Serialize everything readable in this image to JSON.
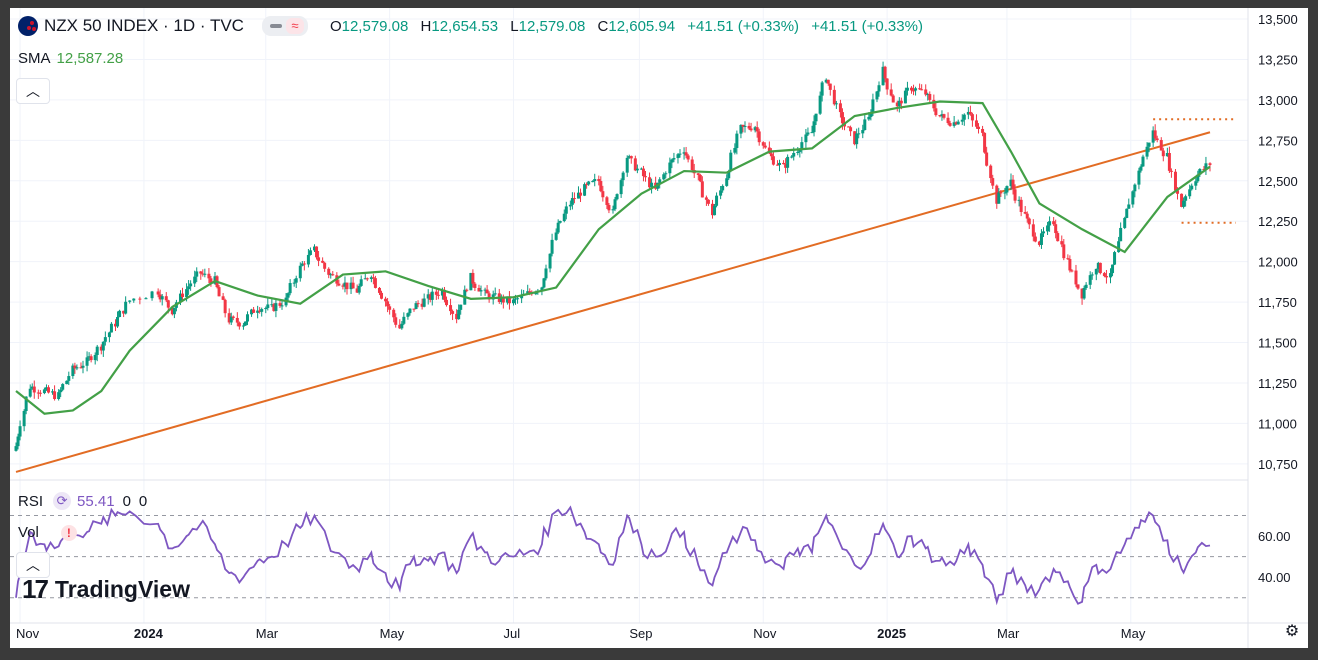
{
  "header": {
    "symbol": "NZX 50 INDEX · 1D · TVC",
    "o_label": "O",
    "o_value": "12,579.08",
    "h_label": "H",
    "h_value": "12,654.53",
    "l_label": "L",
    "l_value": "12,579.08",
    "c_label": "C",
    "c_value": "12,605.94",
    "change": "+41.51 (+0.33%)",
    "change2": "+41.51 (+0.33%)",
    "pill_icon": "≈"
  },
  "sma": {
    "label": "SMA",
    "value": "12,587.28"
  },
  "rsi": {
    "label": "RSI",
    "value": "55.41",
    "extra1": "0",
    "extra2": "0"
  },
  "vol": {
    "label": "Vol"
  },
  "logo": {
    "text": "TradingView"
  },
  "colors": {
    "up": "#089981",
    "down": "#f23645",
    "sma": "#43a047",
    "trendline": "#e26c24",
    "rsi": "#7e57c2",
    "grid": "#f0f3fa"
  },
  "chart_data": [
    {
      "type": "candlestick",
      "title": "NZX 50 INDEX · 1D · TVC",
      "x_ticks": [
        "Nov",
        "2024",
        "Mar",
        "May",
        "Jul",
        "Sep",
        "Nov",
        "2025",
        "Mar",
        "May"
      ],
      "y_ticks": [
        "13,500",
        "13,250",
        "13,000",
        "12,750",
        "12,500",
        "12,250",
        "12,000",
        "11,750",
        "11,500",
        "11,250",
        "11,000",
        "10,750"
      ],
      "ylim": [
        10650,
        13500
      ],
      "close_series": [
        {
          "date": "2023-10-30",
          "close": 10860
        },
        {
          "date": "2023-11-06",
          "close": 11230
        },
        {
          "date": "2023-11-13",
          "close": 11200
        },
        {
          "date": "2023-11-20",
          "close": 11170
        },
        {
          "date": "2023-11-27",
          "close": 11330
        },
        {
          "date": "2023-12-04",
          "close": 11380
        },
        {
          "date": "2023-12-11",
          "close": 11480
        },
        {
          "date": "2023-12-18",
          "close": 11620
        },
        {
          "date": "2023-12-25",
          "close": 11760
        },
        {
          "date": "2024-01-08",
          "close": 11820
        },
        {
          "date": "2024-01-15",
          "close": 11700
        },
        {
          "date": "2024-01-22",
          "close": 11830
        },
        {
          "date": "2024-01-29",
          "close": 11930
        },
        {
          "date": "2024-02-05",
          "close": 11880
        },
        {
          "date": "2024-02-12",
          "close": 11640
        },
        {
          "date": "2024-02-19",
          "close": 11620
        },
        {
          "date": "2024-02-26",
          "close": 11720
        },
        {
          "date": "2024-03-04",
          "close": 11710
        },
        {
          "date": "2024-03-11",
          "close": 11760
        },
        {
          "date": "2024-03-18",
          "close": 11960
        },
        {
          "date": "2024-03-25",
          "close": 12070
        },
        {
          "date": "2024-04-01",
          "close": 11930
        },
        {
          "date": "2024-04-08",
          "close": 11870
        },
        {
          "date": "2024-04-15",
          "close": 11820
        },
        {
          "date": "2024-04-22",
          "close": 11930
        },
        {
          "date": "2024-04-29",
          "close": 11760
        },
        {
          "date": "2024-05-06",
          "close": 11590
        },
        {
          "date": "2024-05-13",
          "close": 11720
        },
        {
          "date": "2024-05-20",
          "close": 11770
        },
        {
          "date": "2024-05-27",
          "close": 11820
        },
        {
          "date": "2024-06-03",
          "close": 11660
        },
        {
          "date": "2024-06-10",
          "close": 11900
        },
        {
          "date": "2024-06-17",
          "close": 11800
        },
        {
          "date": "2024-06-24",
          "close": 11770
        },
        {
          "date": "2024-07-01",
          "close": 11750
        },
        {
          "date": "2024-07-08",
          "close": 11800
        },
        {
          "date": "2024-07-15",
          "close": 11850
        },
        {
          "date": "2024-07-22",
          "close": 12180
        },
        {
          "date": "2024-07-29",
          "close": 12360
        },
        {
          "date": "2024-08-05",
          "close": 12450
        },
        {
          "date": "2024-08-12",
          "close": 12500
        },
        {
          "date": "2024-08-19",
          "close": 12300
        },
        {
          "date": "2024-08-26",
          "close": 12650
        },
        {
          "date": "2024-09-02",
          "close": 12550
        },
        {
          "date": "2024-09-09",
          "close": 12440
        },
        {
          "date": "2024-09-16",
          "close": 12600
        },
        {
          "date": "2024-09-23",
          "close": 12700
        },
        {
          "date": "2024-09-30",
          "close": 12510
        },
        {
          "date": "2024-10-07",
          "close": 12300
        },
        {
          "date": "2024-10-14",
          "close": 12530
        },
        {
          "date": "2024-10-21",
          "close": 12820
        },
        {
          "date": "2024-10-28",
          "close": 12840
        },
        {
          "date": "2024-11-04",
          "close": 12660
        },
        {
          "date": "2024-11-11",
          "close": 12580
        },
        {
          "date": "2024-11-18",
          "close": 12700
        },
        {
          "date": "2024-11-25",
          "close": 12800
        },
        {
          "date": "2024-12-02",
          "close": 13150
        },
        {
          "date": "2024-12-09",
          "close": 12900
        },
        {
          "date": "2024-12-16",
          "close": 12750
        },
        {
          "date": "2024-12-23",
          "close": 12880
        },
        {
          "date": "2024-12-30",
          "close": 13180
        },
        {
          "date": "2025-01-06",
          "close": 12950
        },
        {
          "date": "2025-01-13",
          "close": 13080
        },
        {
          "date": "2025-01-20",
          "close": 13040
        },
        {
          "date": "2025-01-27",
          "close": 12900
        },
        {
          "date": "2025-02-03",
          "close": 12860
        },
        {
          "date": "2025-02-10",
          "close": 12920
        },
        {
          "date": "2025-02-17",
          "close": 12780
        },
        {
          "date": "2025-02-24",
          "close": 12380
        },
        {
          "date": "2025-03-03",
          "close": 12490
        },
        {
          "date": "2025-03-10",
          "close": 12280
        },
        {
          "date": "2025-03-17",
          "close": 12120
        },
        {
          "date": "2025-03-24",
          "close": 12250
        },
        {
          "date": "2025-03-31",
          "close": 12000
        },
        {
          "date": "2025-04-07",
          "close": 11800
        },
        {
          "date": "2025-04-14",
          "close": 11980
        },
        {
          "date": "2025-04-21",
          "close": 11900
        },
        {
          "date": "2025-04-28",
          "close": 12250
        },
        {
          "date": "2025-05-05",
          "close": 12550
        },
        {
          "date": "2025-05-12",
          "close": 12800
        },
        {
          "date": "2025-05-19",
          "close": 12650
        },
        {
          "date": "2025-05-26",
          "close": 12350
        },
        {
          "date": "2025-06-02",
          "close": 12520
        },
        {
          "date": "2025-06-09",
          "close": 12606
        }
      ],
      "sma_series": [
        {
          "date": "2023-10-30",
          "value": 11200
        },
        {
          "date": "2023-11-13",
          "value": 11060
        },
        {
          "date": "2023-11-27",
          "value": 11080
        },
        {
          "date": "2023-12-11",
          "value": 11200
        },
        {
          "date": "2023-12-25",
          "value": 11450
        },
        {
          "date": "2024-01-15",
          "value": 11720
        },
        {
          "date": "2024-02-05",
          "value": 11880
        },
        {
          "date": "2024-02-26",
          "value": 11790
        },
        {
          "date": "2024-03-18",
          "value": 11740
        },
        {
          "date": "2024-04-08",
          "value": 11920
        },
        {
          "date": "2024-04-29",
          "value": 11940
        },
        {
          "date": "2024-05-20",
          "value": 11850
        },
        {
          "date": "2024-06-10",
          "value": 11770
        },
        {
          "date": "2024-07-01",
          "value": 11780
        },
        {
          "date": "2024-07-22",
          "value": 11840
        },
        {
          "date": "2024-08-12",
          "value": 12200
        },
        {
          "date": "2024-09-02",
          "value": 12420
        },
        {
          "date": "2024-09-23",
          "value": 12560
        },
        {
          "date": "2024-10-14",
          "value": 12550
        },
        {
          "date": "2024-11-04",
          "value": 12680
        },
        {
          "date": "2024-11-25",
          "value": 12700
        },
        {
          "date": "2024-12-16",
          "value": 12900
        },
        {
          "date": "2025-01-06",
          "value": 12950
        },
        {
          "date": "2025-01-27",
          "value": 12990
        },
        {
          "date": "2025-02-17",
          "value": 12980
        },
        {
          "date": "2025-03-03",
          "value": 12680
        },
        {
          "date": "2025-03-17",
          "value": 12360
        },
        {
          "date": "2025-04-07",
          "value": 12200
        },
        {
          "date": "2025-04-28",
          "value": 12060
        },
        {
          "date": "2025-05-19",
          "value": 12400
        },
        {
          "date": "2025-06-09",
          "value": 12587
        }
      ],
      "trendline": [
        {
          "date": "2023-10-30",
          "value": 10700
        },
        {
          "date": "2025-06-09",
          "value": 12800
        }
      ],
      "resistance_level": 12880,
      "support_level": 12240
    },
    {
      "type": "line",
      "title": "RSI",
      "y_ticks": [
        "60.00",
        "40.00"
      ],
      "bands": [
        70,
        50,
        30
      ],
      "ylim": [
        25,
        80
      ],
      "series": [
        {
          "date": "2023-10-30",
          "value": 30
        },
        {
          "date": "2023-11-06",
          "value": 62
        },
        {
          "date": "2023-11-13",
          "value": 56
        },
        {
          "date": "2023-11-20",
          "value": 55
        },
        {
          "date": "2023-11-27",
          "value": 64
        },
        {
          "date": "2023-12-04",
          "value": 62
        },
        {
          "date": "2023-12-11",
          "value": 66
        },
        {
          "date": "2023-12-18",
          "value": 70
        },
        {
          "date": "2023-12-25",
          "value": 72
        },
        {
          "date": "2024-01-08",
          "value": 66
        },
        {
          "date": "2024-01-15",
          "value": 54
        },
        {
          "date": "2024-01-22",
          "value": 60
        },
        {
          "date": "2024-01-29",
          "value": 66
        },
        {
          "date": "2024-02-05",
          "value": 56
        },
        {
          "date": "2024-02-12",
          "value": 42
        },
        {
          "date": "2024-02-19",
          "value": 40
        },
        {
          "date": "2024-02-26",
          "value": 48
        },
        {
          "date": "2024-03-04",
          "value": 50
        },
        {
          "date": "2024-03-11",
          "value": 56
        },
        {
          "date": "2024-03-18",
          "value": 64
        },
        {
          "date": "2024-03-25",
          "value": 70
        },
        {
          "date": "2024-04-01",
          "value": 56
        },
        {
          "date": "2024-04-08",
          "value": 50
        },
        {
          "date": "2024-04-15",
          "value": 44
        },
        {
          "date": "2024-04-22",
          "value": 52
        },
        {
          "date": "2024-04-29",
          "value": 42
        },
        {
          "date": "2024-05-06",
          "value": 34
        },
        {
          "date": "2024-05-13",
          "value": 50
        },
        {
          "date": "2024-05-20",
          "value": 48
        },
        {
          "date": "2024-05-27",
          "value": 52
        },
        {
          "date": "2024-06-03",
          "value": 42
        },
        {
          "date": "2024-06-10",
          "value": 60
        },
        {
          "date": "2024-06-17",
          "value": 52
        },
        {
          "date": "2024-06-24",
          "value": 48
        },
        {
          "date": "2024-07-01",
          "value": 50
        },
        {
          "date": "2024-07-08",
          "value": 52
        },
        {
          "date": "2024-07-15",
          "value": 56
        },
        {
          "date": "2024-07-22",
          "value": 72
        },
        {
          "date": "2024-07-29",
          "value": 74
        },
        {
          "date": "2024-08-05",
          "value": 62
        },
        {
          "date": "2024-08-12",
          "value": 56
        },
        {
          "date": "2024-08-19",
          "value": 46
        },
        {
          "date": "2024-08-26",
          "value": 70
        },
        {
          "date": "2024-09-02",
          "value": 56
        },
        {
          "date": "2024-09-09",
          "value": 50
        },
        {
          "date": "2024-09-16",
          "value": 58
        },
        {
          "date": "2024-09-23",
          "value": 62
        },
        {
          "date": "2024-09-30",
          "value": 46
        },
        {
          "date": "2024-10-07",
          "value": 36
        },
        {
          "date": "2024-10-14",
          "value": 52
        },
        {
          "date": "2024-10-21",
          "value": 62
        },
        {
          "date": "2024-10-28",
          "value": 58
        },
        {
          "date": "2024-11-04",
          "value": 48
        },
        {
          "date": "2024-11-11",
          "value": 44
        },
        {
          "date": "2024-11-18",
          "value": 54
        },
        {
          "date": "2024-11-25",
          "value": 52
        },
        {
          "date": "2024-12-02",
          "value": 70
        },
        {
          "date": "2024-12-09",
          "value": 56
        },
        {
          "date": "2024-12-16",
          "value": 46
        },
        {
          "date": "2024-12-23",
          "value": 50
        },
        {
          "date": "2024-12-30",
          "value": 66
        },
        {
          "date": "2025-01-06",
          "value": 50
        },
        {
          "date": "2025-01-13",
          "value": 60
        },
        {
          "date": "2025-01-20",
          "value": 54
        },
        {
          "date": "2025-01-27",
          "value": 48
        },
        {
          "date": "2025-02-03",
          "value": 46
        },
        {
          "date": "2025-02-10",
          "value": 56
        },
        {
          "date": "2025-02-17",
          "value": 46
        },
        {
          "date": "2025-02-24",
          "value": 28
        },
        {
          "date": "2025-03-03",
          "value": 42
        },
        {
          "date": "2025-03-10",
          "value": 36
        },
        {
          "date": "2025-03-17",
          "value": 34
        },
        {
          "date": "2025-03-24",
          "value": 44
        },
        {
          "date": "2025-03-31",
          "value": 38
        },
        {
          "date": "2025-04-07",
          "value": 28
        },
        {
          "date": "2025-04-14",
          "value": 46
        },
        {
          "date": "2025-04-21",
          "value": 44
        },
        {
          "date": "2025-04-28",
          "value": 56
        },
        {
          "date": "2025-05-05",
          "value": 64
        },
        {
          "date": "2025-05-12",
          "value": 70
        },
        {
          "date": "2025-05-19",
          "value": 58
        },
        {
          "date": "2025-05-26",
          "value": 44
        },
        {
          "date": "2025-06-02",
          "value": 52
        },
        {
          "date": "2025-06-09",
          "value": 55.41
        }
      ]
    }
  ]
}
